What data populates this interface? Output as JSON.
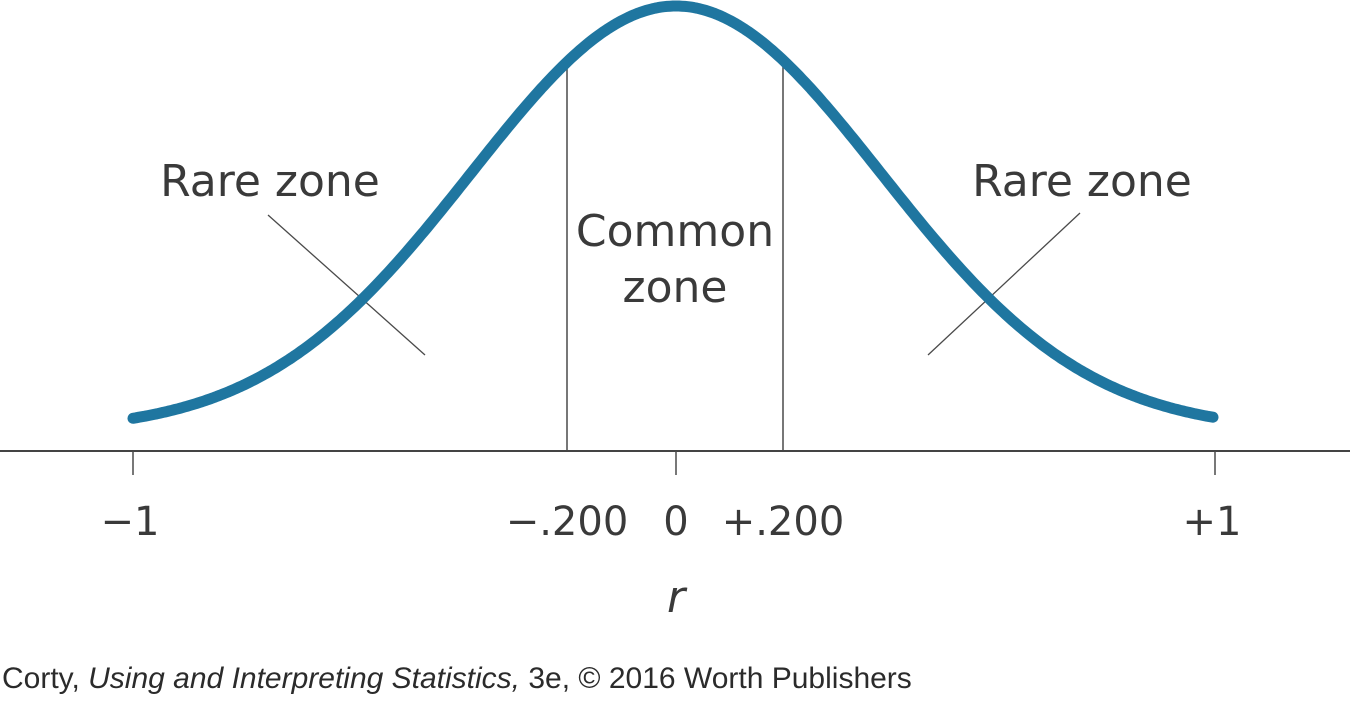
{
  "figure": {
    "axis_variable": "r",
    "tick_labels": [
      "−1",
      "−.200",
      "0",
      "+.200",
      "+1"
    ],
    "zone_labels": {
      "rare_left": "Rare zone",
      "rare_right": "Rare zone",
      "common_line1": "Common",
      "common_line2": "zone"
    },
    "colors": {
      "curve": "#1f76a0",
      "ink": "#3a3a3a"
    }
  },
  "credit": {
    "author": "Corty,",
    "title": "Using and Interpreting Statistics,",
    "rest": "3e, © 2016 Worth Publishers"
  }
}
